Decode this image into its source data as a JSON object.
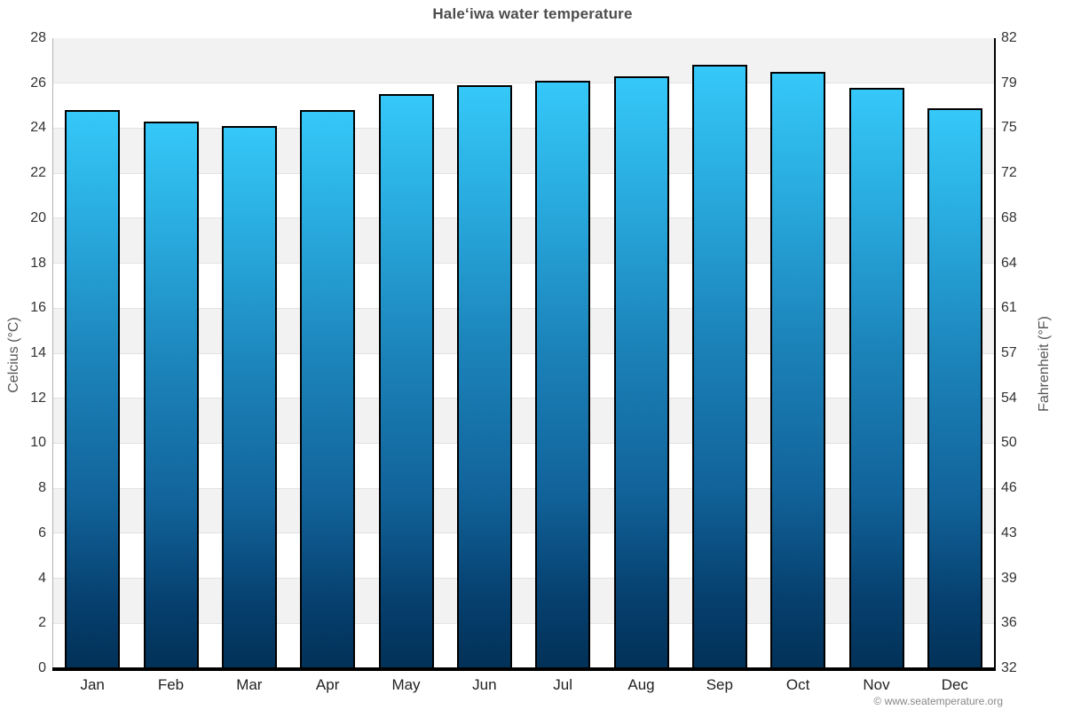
{
  "title": "Haleʻiwa water temperature",
  "attribution": "© www.seatemperature.org",
  "colors": {
    "bar_gradient_top": "#35c8f8",
    "bar_gradient_mid": "#1b82b8",
    "bar_gradient_bottom": "#023157",
    "bar_border": "#000000",
    "band_gray": "#f2f2f2",
    "band_white": "#ffffff",
    "grid_line": "#e2e2e2",
    "title_text": "#4d4d4d",
    "tick_text": "#333333",
    "month_text": "#222222",
    "axis_title_text": "#555555",
    "footer_text": "#888888",
    "left_axis_line": "#b3b3b3",
    "right_axis_line": "#000000",
    "bottom_axis_line": "#000000"
  },
  "chart_data": {
    "type": "bar",
    "title": "Haleʻiwa water temperature",
    "categories": [
      "Jan",
      "Feb",
      "Mar",
      "Apr",
      "May",
      "Jun",
      "Jul",
      "Aug",
      "Sep",
      "Oct",
      "Nov",
      "Dec"
    ],
    "series": [
      {
        "name": "Water temperature",
        "unit": "°C",
        "values": [
          24.8,
          24.3,
          24.1,
          24.8,
          25.5,
          25.9,
          26.1,
          26.3,
          26.8,
          26.5,
          25.8,
          24.9
        ]
      }
    ],
    "xlabel": "",
    "ylabel_left": "Celcius (°C)",
    "ylabel_right": "Fahrenheit (°F)",
    "ylim_celsius": [
      0,
      28
    ],
    "yticks_celsius": [
      0,
      2,
      4,
      6,
      8,
      10,
      12,
      14,
      16,
      18,
      20,
      22,
      24,
      26,
      28
    ],
    "yticks_fahrenheit": [
      32,
      36,
      39,
      43,
      46,
      50,
      54,
      57,
      61,
      64,
      68,
      72,
      75,
      79,
      82
    ],
    "grid": "alternating horizontal bands every 2°C, gray and white",
    "legend": "none",
    "bar_outline": "black"
  }
}
